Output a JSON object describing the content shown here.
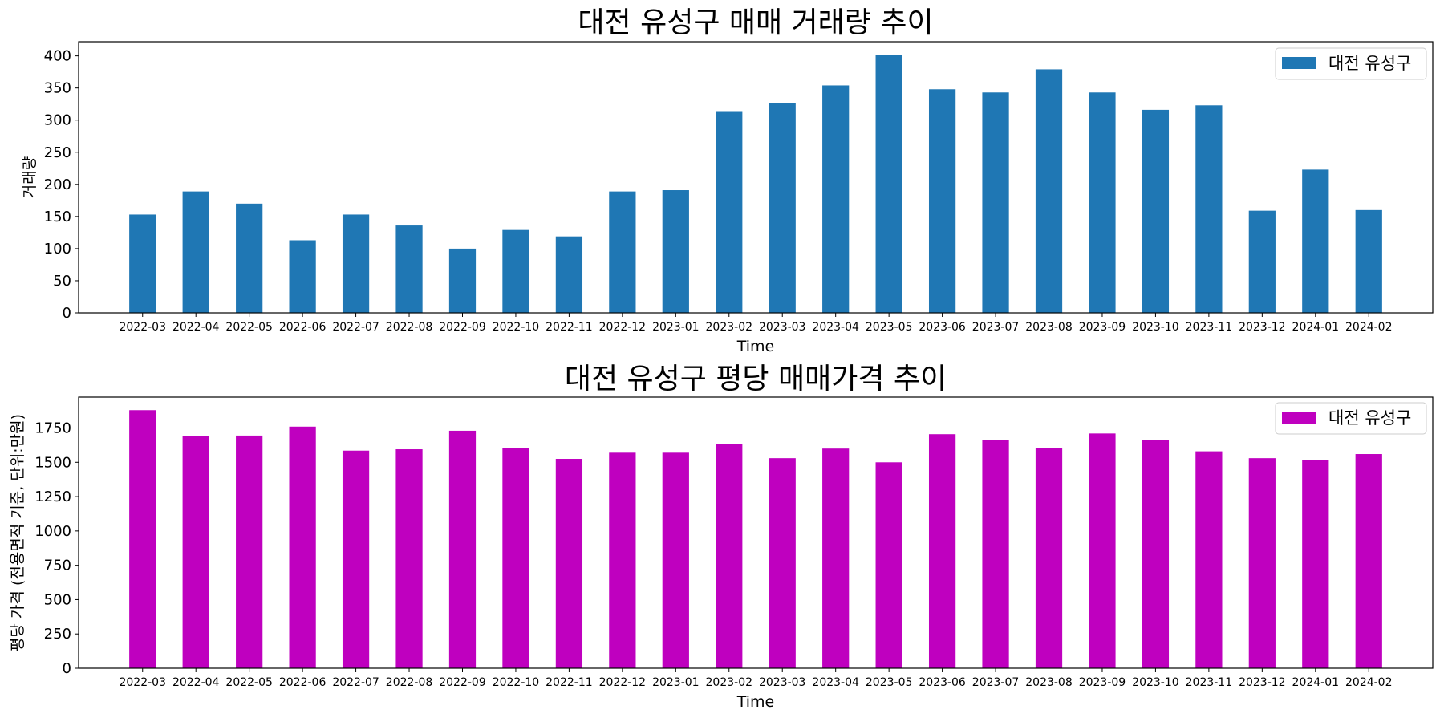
{
  "chart_data": [
    {
      "type": "bar",
      "title": "대전 유성구 매매 거래량 추이",
      "xlabel": "Time",
      "ylabel": "거래량",
      "categories": [
        "2022-03",
        "2022-04",
        "2022-05",
        "2022-06",
        "2022-07",
        "2022-08",
        "2022-09",
        "2022-10",
        "2022-11",
        "2022-12",
        "2023-01",
        "2023-02",
        "2023-03",
        "2023-04",
        "2023-05",
        "2023-06",
        "2023-07",
        "2023-08",
        "2023-09",
        "2023-10",
        "2023-11",
        "2023-12",
        "2024-01",
        "2024-02"
      ],
      "series": [
        {
          "name": "대전 유성구",
          "color": "#1f77b4",
          "values": [
            153,
            189,
            170,
            113,
            153,
            136,
            100,
            129,
            119,
            189,
            191,
            314,
            327,
            354,
            401,
            348,
            343,
            379,
            343,
            316,
            323,
            159,
            223,
            160
          ]
        }
      ],
      "ylim": [
        0,
        422
      ],
      "yticks": [
        0,
        50,
        100,
        150,
        200,
        250,
        300,
        350,
        400
      ],
      "grid": false,
      "legend_position": "top-right"
    },
    {
      "type": "bar",
      "title": "대전 유성구 평당 매매가격 추이",
      "xlabel": "Time",
      "ylabel": "평당 가격 (전용면적 기준, 단위:만원)",
      "categories": [
        "2022-03",
        "2022-04",
        "2022-05",
        "2022-06",
        "2022-07",
        "2022-08",
        "2022-09",
        "2022-10",
        "2022-11",
        "2022-12",
        "2023-01",
        "2023-02",
        "2023-03",
        "2023-04",
        "2023-05",
        "2023-06",
        "2023-07",
        "2023-08",
        "2023-09",
        "2023-10",
        "2023-11",
        "2023-12",
        "2024-01",
        "2024-02"
      ],
      "series": [
        {
          "name": "대전 유성구",
          "color": "#bf00bf",
          "values": [
            1880,
            1690,
            1695,
            1760,
            1585,
            1595,
            1730,
            1605,
            1525,
            1570,
            1570,
            1635,
            1530,
            1600,
            1500,
            1705,
            1665,
            1605,
            1710,
            1660,
            1580,
            1530,
            1515,
            1560
          ]
        }
      ],
      "ylim": [
        0,
        1975
      ],
      "yticks": [
        0,
        250,
        500,
        750,
        1000,
        1250,
        1500,
        1750
      ],
      "grid": false,
      "legend_position": "top-right"
    }
  ]
}
